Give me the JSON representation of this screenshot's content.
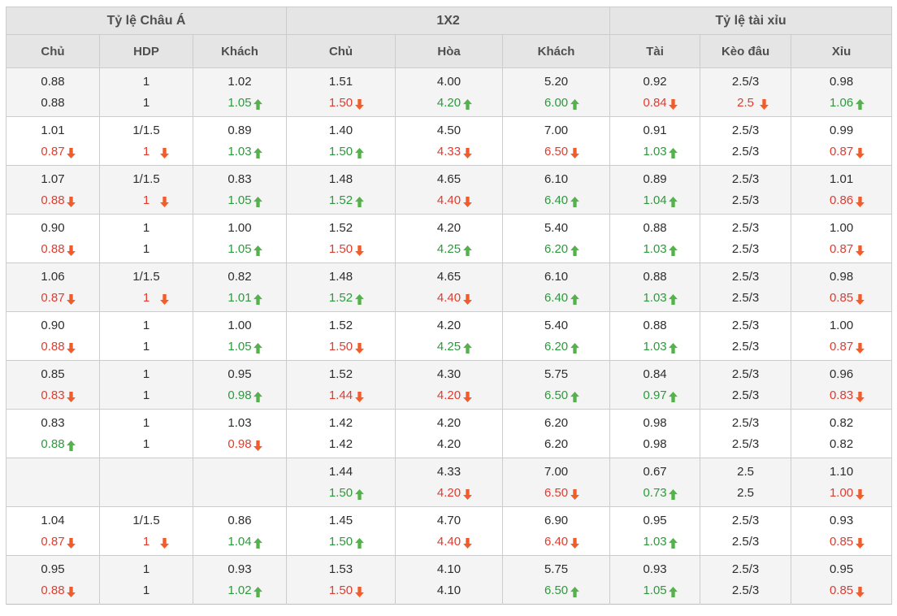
{
  "colors": {
    "border": "#cccccc",
    "headerBg": "#e5e5e5",
    "stripe": "#f4f4f4",
    "headerText": "#4f4f4f",
    "dataText": "#2d2d2d",
    "green": "#2c9a3c",
    "red": "#e23b2e",
    "greenArrow": "#55b14b",
    "redArrow": "#f25c2a"
  },
  "table": {
    "groups": [
      {
        "label": "Tỷ lệ Châu Á",
        "span": 3
      },
      {
        "label": "1X2",
        "span": 3
      },
      {
        "label": "Tỷ lệ tài xỉu",
        "span": 3
      }
    ],
    "columns": [
      "Chủ",
      "HDP",
      "Khách",
      "Chủ",
      "Hòa",
      "Khách",
      "Tài",
      "Kèo đâu",
      "Xỉu"
    ],
    "cell_format": "[value, color(g=green,r=red), arrow(u=up,d=down)]",
    "rows": [
      {
        "l1": [
          [
            "0.88"
          ],
          [
            "1"
          ],
          [
            "1.02"
          ],
          [
            "1.51"
          ],
          [
            "4.00"
          ],
          [
            "5.20"
          ],
          [
            "0.92"
          ],
          [
            "2.5/3"
          ],
          [
            "0.98"
          ]
        ],
        "l2": [
          [
            "0.88"
          ],
          [
            "1"
          ],
          [
            "1.05",
            "g",
            "u"
          ],
          [
            "1.50",
            "r",
            "d"
          ],
          [
            "4.20",
            "g",
            "u"
          ],
          [
            "6.00",
            "g",
            "u"
          ],
          [
            "0.84",
            "r",
            "d"
          ],
          [
            "2.5",
            "r",
            "d"
          ],
          [
            "1.06",
            "g",
            "u"
          ]
        ]
      },
      {
        "l1": [
          [
            "1.01"
          ],
          [
            "1/1.5"
          ],
          [
            "0.89"
          ],
          [
            "1.40"
          ],
          [
            "4.50"
          ],
          [
            "7.00"
          ],
          [
            "0.91"
          ],
          [
            "2.5/3"
          ],
          [
            "0.99"
          ]
        ],
        "l2": [
          [
            "0.87",
            "r",
            "d"
          ],
          [
            "1",
            "r",
            "d"
          ],
          [
            "1.03",
            "g",
            "u"
          ],
          [
            "1.50",
            "g",
            "u"
          ],
          [
            "4.33",
            "r",
            "d"
          ],
          [
            "6.50",
            "r",
            "d"
          ],
          [
            "1.03",
            "g",
            "u"
          ],
          [
            "2.5/3"
          ],
          [
            "0.87",
            "r",
            "d"
          ]
        ]
      },
      {
        "l1": [
          [
            "1.07"
          ],
          [
            "1/1.5"
          ],
          [
            "0.83"
          ],
          [
            "1.48"
          ],
          [
            "4.65"
          ],
          [
            "6.10"
          ],
          [
            "0.89"
          ],
          [
            "2.5/3"
          ],
          [
            "1.01"
          ]
        ],
        "l2": [
          [
            "0.88",
            "r",
            "d"
          ],
          [
            "1",
            "r",
            "d"
          ],
          [
            "1.05",
            "g",
            "u"
          ],
          [
            "1.52",
            "g",
            "u"
          ],
          [
            "4.40",
            "r",
            "d"
          ],
          [
            "6.40",
            "g",
            "u"
          ],
          [
            "1.04",
            "g",
            "u"
          ],
          [
            "2.5/3"
          ],
          [
            "0.86",
            "r",
            "d"
          ]
        ]
      },
      {
        "l1": [
          [
            "0.90"
          ],
          [
            "1"
          ],
          [
            "1.00"
          ],
          [
            "1.52"
          ],
          [
            "4.20"
          ],
          [
            "5.40"
          ],
          [
            "0.88"
          ],
          [
            "2.5/3"
          ],
          [
            "1.00"
          ]
        ],
        "l2": [
          [
            "0.88",
            "r",
            "d"
          ],
          [
            "1"
          ],
          [
            "1.05",
            "g",
            "u"
          ],
          [
            "1.50",
            "r",
            "d"
          ],
          [
            "4.25",
            "g",
            "u"
          ],
          [
            "6.20",
            "g",
            "u"
          ],
          [
            "1.03",
            "g",
            "u"
          ],
          [
            "2.5/3"
          ],
          [
            "0.87",
            "r",
            "d"
          ]
        ]
      },
      {
        "l1": [
          [
            "1.06"
          ],
          [
            "1/1.5"
          ],
          [
            "0.82"
          ],
          [
            "1.48"
          ],
          [
            "4.65"
          ],
          [
            "6.10"
          ],
          [
            "0.88"
          ],
          [
            "2.5/3"
          ],
          [
            "0.98"
          ]
        ],
        "l2": [
          [
            "0.87",
            "r",
            "d"
          ],
          [
            "1",
            "r",
            "d"
          ],
          [
            "1.01",
            "g",
            "u"
          ],
          [
            "1.52",
            "g",
            "u"
          ],
          [
            "4.40",
            "r",
            "d"
          ],
          [
            "6.40",
            "g",
            "u"
          ],
          [
            "1.03",
            "g",
            "u"
          ],
          [
            "2.5/3"
          ],
          [
            "0.85",
            "r",
            "d"
          ]
        ]
      },
      {
        "l1": [
          [
            "0.90"
          ],
          [
            "1"
          ],
          [
            "1.00"
          ],
          [
            "1.52"
          ],
          [
            "4.20"
          ],
          [
            "5.40"
          ],
          [
            "0.88"
          ],
          [
            "2.5/3"
          ],
          [
            "1.00"
          ]
        ],
        "l2": [
          [
            "0.88",
            "r",
            "d"
          ],
          [
            "1"
          ],
          [
            "1.05",
            "g",
            "u"
          ],
          [
            "1.50",
            "r",
            "d"
          ],
          [
            "4.25",
            "g",
            "u"
          ],
          [
            "6.20",
            "g",
            "u"
          ],
          [
            "1.03",
            "g",
            "u"
          ],
          [
            "2.5/3"
          ],
          [
            "0.87",
            "r",
            "d"
          ]
        ]
      },
      {
        "l1": [
          [
            "0.85"
          ],
          [
            "1"
          ],
          [
            "0.95"
          ],
          [
            "1.52"
          ],
          [
            "4.30"
          ],
          [
            "5.75"
          ],
          [
            "0.84"
          ],
          [
            "2.5/3"
          ],
          [
            "0.96"
          ]
        ],
        "l2": [
          [
            "0.83",
            "r",
            "d"
          ],
          [
            "1"
          ],
          [
            "0.98",
            "g",
            "u"
          ],
          [
            "1.44",
            "r",
            "d"
          ],
          [
            "4.20",
            "r",
            "d"
          ],
          [
            "6.50",
            "g",
            "u"
          ],
          [
            "0.97",
            "g",
            "u"
          ],
          [
            "2.5/3"
          ],
          [
            "0.83",
            "r",
            "d"
          ]
        ]
      },
      {
        "l1": [
          [
            "0.83"
          ],
          [
            "1"
          ],
          [
            "1.03"
          ],
          [
            "1.42"
          ],
          [
            "4.20"
          ],
          [
            "6.20"
          ],
          [
            "0.98"
          ],
          [
            "2.5/3"
          ],
          [
            "0.82"
          ]
        ],
        "l2": [
          [
            "0.88",
            "g",
            "u"
          ],
          [
            "1"
          ],
          [
            "0.98",
            "r",
            "d"
          ],
          [
            "1.42"
          ],
          [
            "4.20"
          ],
          [
            "6.20"
          ],
          [
            "0.98"
          ],
          [
            "2.5/3"
          ],
          [
            "0.82"
          ]
        ]
      },
      {
        "l1": [
          [
            ""
          ],
          [
            ""
          ],
          [
            ""
          ],
          [
            "1.44"
          ],
          [
            "4.33"
          ],
          [
            "7.00"
          ],
          [
            "0.67"
          ],
          [
            "2.5"
          ],
          [
            "1.10"
          ]
        ],
        "l2": [
          [
            ""
          ],
          [
            ""
          ],
          [
            ""
          ],
          [
            "1.50",
            "g",
            "u"
          ],
          [
            "4.20",
            "r",
            "d"
          ],
          [
            "6.50",
            "r",
            "d"
          ],
          [
            "0.73",
            "g",
            "u"
          ],
          [
            "2.5"
          ],
          [
            "1.00",
            "r",
            "d"
          ]
        ]
      },
      {
        "l1": [
          [
            "1.04"
          ],
          [
            "1/1.5"
          ],
          [
            "0.86"
          ],
          [
            "1.45"
          ],
          [
            "4.70"
          ],
          [
            "6.90"
          ],
          [
            "0.95"
          ],
          [
            "2.5/3"
          ],
          [
            "0.93"
          ]
        ],
        "l2": [
          [
            "0.87",
            "r",
            "d"
          ],
          [
            "1",
            "r",
            "d"
          ],
          [
            "1.04",
            "g",
            "u"
          ],
          [
            "1.50",
            "g",
            "u"
          ],
          [
            "4.40",
            "r",
            "d"
          ],
          [
            "6.40",
            "r",
            "d"
          ],
          [
            "1.03",
            "g",
            "u"
          ],
          [
            "2.5/3"
          ],
          [
            "0.85",
            "r",
            "d"
          ]
        ]
      },
      {
        "l1": [
          [
            "0.95"
          ],
          [
            "1"
          ],
          [
            "0.93"
          ],
          [
            "1.53"
          ],
          [
            "4.10"
          ],
          [
            "5.75"
          ],
          [
            "0.93"
          ],
          [
            "2.5/3"
          ],
          [
            "0.95"
          ]
        ],
        "l2": [
          [
            "0.88",
            "r",
            "d"
          ],
          [
            "1"
          ],
          [
            "1.02",
            "g",
            "u"
          ],
          [
            "1.50",
            "r",
            "d"
          ],
          [
            "4.10"
          ],
          [
            "6.50",
            "g",
            "u"
          ],
          [
            "1.05",
            "g",
            "u"
          ],
          [
            "2.5/3"
          ],
          [
            "0.85",
            "r",
            "d"
          ]
        ]
      }
    ]
  }
}
